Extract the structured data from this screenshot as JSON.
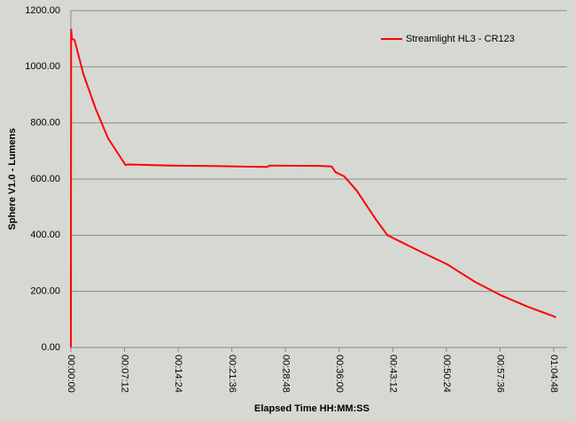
{
  "chart_data": {
    "type": "line",
    "x_label": "Elapsed Time HH:MM:SS",
    "y_label": "Sphere V1.0 - Lumens",
    "xlim": [
      0,
      3888
    ],
    "xticks": [
      {
        "value": 0,
        "label": "00:00:00"
      },
      {
        "value": 432,
        "label": "00:07:12"
      },
      {
        "value": 864,
        "label": "00:14:24"
      },
      {
        "value": 1296,
        "label": "00:21:36"
      },
      {
        "value": 1728,
        "label": "00:28:48"
      },
      {
        "value": 2160,
        "label": "00:36:00"
      },
      {
        "value": 2592,
        "label": "00:43:12"
      },
      {
        "value": 3024,
        "label": "00:50:24"
      },
      {
        "value": 3456,
        "label": "00:57:36"
      },
      {
        "value": 3888,
        "label": "01:04:48"
      }
    ],
    "ylim": [
      0,
      1200
    ],
    "yticks": [
      {
        "value": 0,
        "label": "0.00"
      },
      {
        "value": 200,
        "label": "200.00"
      },
      {
        "value": 400,
        "label": "400.00"
      },
      {
        "value": 600,
        "label": "600.00"
      },
      {
        "value": 800,
        "label": "800.00"
      },
      {
        "value": 1000,
        "label": "1000.00"
      },
      {
        "value": 1200,
        "label": "1200.00"
      }
    ],
    "grid": true,
    "legend": "top-right",
    "x": [
      0,
      2,
      8,
      30,
      100,
      200,
      300,
      440,
      460,
      800,
      1200,
      1580,
      1600,
      2000,
      2100,
      2130,
      2200,
      2300,
      2450,
      2549,
      2800,
      3028,
      3250,
      3463,
      3680,
      3888,
      3905
    ],
    "series": [
      {
        "name": "Streamlight HL3 - CR123",
        "color": "#ff0000",
        "values": [
          0,
          1135,
          1100,
          1095,
          975,
          850,
          745,
          650,
          652,
          648,
          646,
          643,
          648,
          647,
          645,
          625,
          610,
          560,
          460,
          400,
          345,
          297,
          235,
          186,
          145,
          111,
          107
        ]
      }
    ]
  }
}
